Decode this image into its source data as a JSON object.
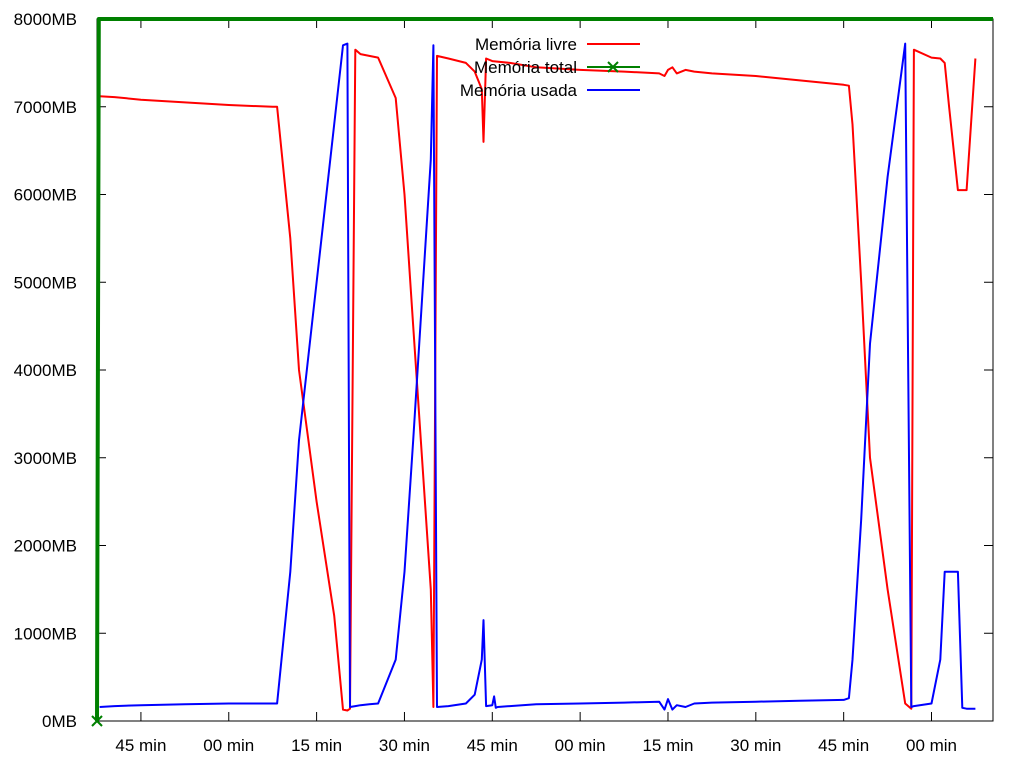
{
  "chart_data": {
    "type": "line",
    "title": "",
    "xlabel": "",
    "ylabel": "",
    "ylim": [
      0,
      8000
    ],
    "xlim": [
      0,
      102
    ],
    "y_ticks": [
      {
        "value": 0,
        "label": "0MB"
      },
      {
        "value": 1000,
        "label": "1000MB"
      },
      {
        "value": 2000,
        "label": "2000MB"
      },
      {
        "value": 3000,
        "label": "3000MB"
      },
      {
        "value": 4000,
        "label": "4000MB"
      },
      {
        "value": 5000,
        "label": "5000MB"
      },
      {
        "value": 6000,
        "label": "6000MB"
      },
      {
        "value": 7000,
        "label": "7000MB"
      },
      {
        "value": 8000,
        "label": "8000MB"
      }
    ],
    "x_ticks": [
      {
        "value": 5,
        "label": "45 min"
      },
      {
        "value": 15,
        "label": "00 min"
      },
      {
        "value": 25,
        "label": "15 min"
      },
      {
        "value": 35,
        "label": "30 min"
      },
      {
        "value": 45,
        "label": "45 min"
      },
      {
        "value": 55,
        "label": "00 min"
      },
      {
        "value": 65,
        "label": "15 min"
      },
      {
        "value": 75,
        "label": "30 min"
      },
      {
        "value": 85,
        "label": "45 min"
      },
      {
        "value": 95,
        "label": "00 min"
      }
    ],
    "legend_position": "top-center",
    "series": [
      {
        "name": "Memória livre",
        "color": "#ff0000",
        "marker": "none",
        "x": [
          0.3,
          2,
          5,
          10,
          15,
          20,
          20.5,
          21,
          22,
          23,
          25,
          27,
          28,
          28.5,
          28.8,
          29.4,
          30,
          31,
          32,
          34,
          35,
          36,
          37,
          38,
          38.3,
          38.7,
          40,
          42,
          43,
          43.8,
          44,
          44.3,
          45,
          47,
          50,
          55,
          60,
          64,
          64.6,
          65,
          65.5,
          66,
          67,
          68,
          70,
          75,
          80,
          85,
          85.6,
          86,
          87,
          88,
          90,
          92,
          92.7,
          93,
          95,
          96,
          96.5,
          97,
          98,
          98.5,
          99,
          100
        ],
        "y": [
          7120,
          7110,
          7080,
          7050,
          7020,
          7000,
          7000,
          6500,
          5500,
          4000,
          2500,
          1200,
          130,
          120,
          140,
          7650,
          7600,
          7580,
          7560,
          7100,
          6000,
          4500,
          3000,
          1500,
          160,
          7580,
          7550,
          7500,
          7400,
          7200,
          6600,
          7550,
          7520,
          7500,
          7450,
          7420,
          7400,
          7380,
          7350,
          7420,
          7450,
          7380,
          7420,
          7400,
          7380,
          7350,
          7300,
          7250,
          7240,
          6800,
          5000,
          3000,
          1500,
          200,
          140,
          7650,
          7560,
          7550,
          7500,
          7000,
          6050,
          6050,
          6050,
          7550
        ]
      },
      {
        "name": "Memória total",
        "color": "#008000",
        "marker": "x",
        "x": [
          0,
          0.2,
          0.5,
          102
        ],
        "y": [
          0,
          8000,
          8000,
          8000
        ]
      },
      {
        "name": "Memória usada",
        "color": "#0000ff",
        "marker": "none",
        "x": [
          0.3,
          2,
          5,
          10,
          15,
          20,
          20.5,
          21,
          22,
          23,
          25,
          27,
          28,
          28.5,
          28.8,
          29.4,
          30,
          31,
          32,
          34,
          35,
          36,
          37,
          38,
          38.3,
          38.7,
          40,
          42,
          43,
          43.8,
          44,
          44.3,
          45,
          45.2,
          45.4,
          45.6,
          47,
          50,
          55,
          60,
          64,
          64.6,
          65,
          65.5,
          66,
          67,
          68,
          70,
          75,
          80,
          85,
          85.6,
          86,
          87,
          88,
          90,
          92,
          92.7,
          93,
          95,
          96,
          96.5,
          97,
          98,
          98.5,
          99,
          100
        ],
        "y": [
          160,
          170,
          180,
          190,
          200,
          200,
          200,
          700,
          1700,
          3200,
          5000,
          6800,
          7700,
          7720,
          160,
          170,
          180,
          190,
          200,
          700,
          1700,
          3200,
          4800,
          6400,
          7700,
          160,
          170,
          200,
          300,
          700,
          1150,
          170,
          180,
          280,
          150,
          160,
          170,
          190,
          200,
          210,
          220,
          130,
          250,
          130,
          180,
          160,
          200,
          210,
          220,
          230,
          240,
          260,
          700,
          2300,
          4300,
          6200,
          7720,
          160,
          170,
          200,
          700,
          1700,
          1700,
          1700,
          150,
          140,
          140
        ]
      }
    ]
  }
}
